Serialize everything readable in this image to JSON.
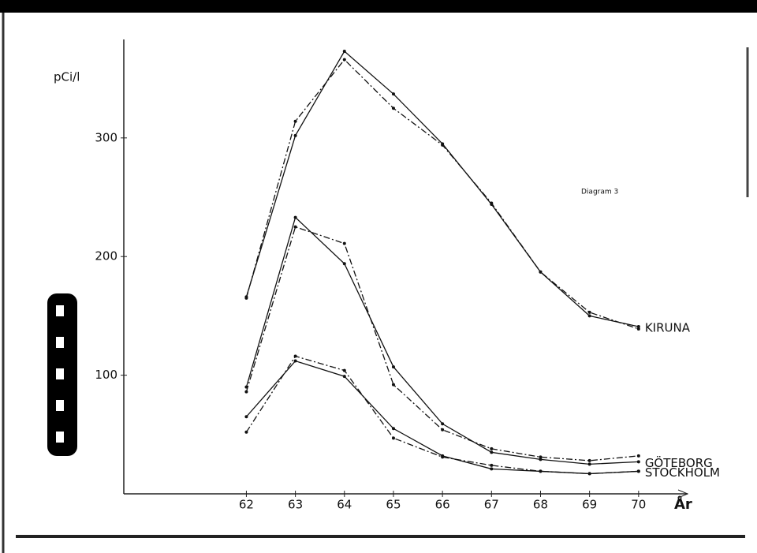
{
  "chart_data": {
    "type": "line",
    "title": "Diagram 3",
    "y_label": "pCi/l",
    "x_label": "År",
    "x": [
      62,
      63,
      64,
      65,
      66,
      67,
      68,
      69,
      70
    ],
    "xlim": [
      59.5,
      71
    ],
    "xticks": [
      62,
      63,
      64,
      65,
      66,
      67,
      68,
      69,
      70
    ],
    "ylim": [
      0,
      383
    ],
    "yticks": [
      100,
      200,
      300
    ],
    "grid": false,
    "series": [
      {
        "name": "KIRUNA",
        "color": "#111111",
        "dash": "solid",
        "values": [
          166,
          302,
          373,
          337,
          295,
          244,
          187,
          150,
          141
        ]
      },
      {
        "color": "#111111",
        "dash": "dashdot",
        "values": [
          165,
          314,
          366,
          325,
          294,
          245,
          187,
          153,
          139
        ]
      },
      {
        "name": "GÖTEBORG",
        "color": "#111111",
        "dash": "solid",
        "values": [
          90,
          233,
          194,
          107,
          59,
          35,
          29,
          25,
          27
        ]
      },
      {
        "color": "#111111",
        "dash": "dashdot",
        "values": [
          86,
          225,
          211,
          92,
          54,
          38,
          31,
          28,
          32
        ]
      },
      {
        "name": "STOCKHOLM",
        "color": "#111111",
        "dash": "solid",
        "values": [
          65,
          112,
          99,
          55,
          32,
          21,
          19,
          17,
          19
        ]
      },
      {
        "color": "#111111",
        "dash": "dashdot",
        "values": [
          52,
          116,
          104,
          47,
          31,
          24,
          19,
          17,
          19
        ]
      }
    ]
  }
}
